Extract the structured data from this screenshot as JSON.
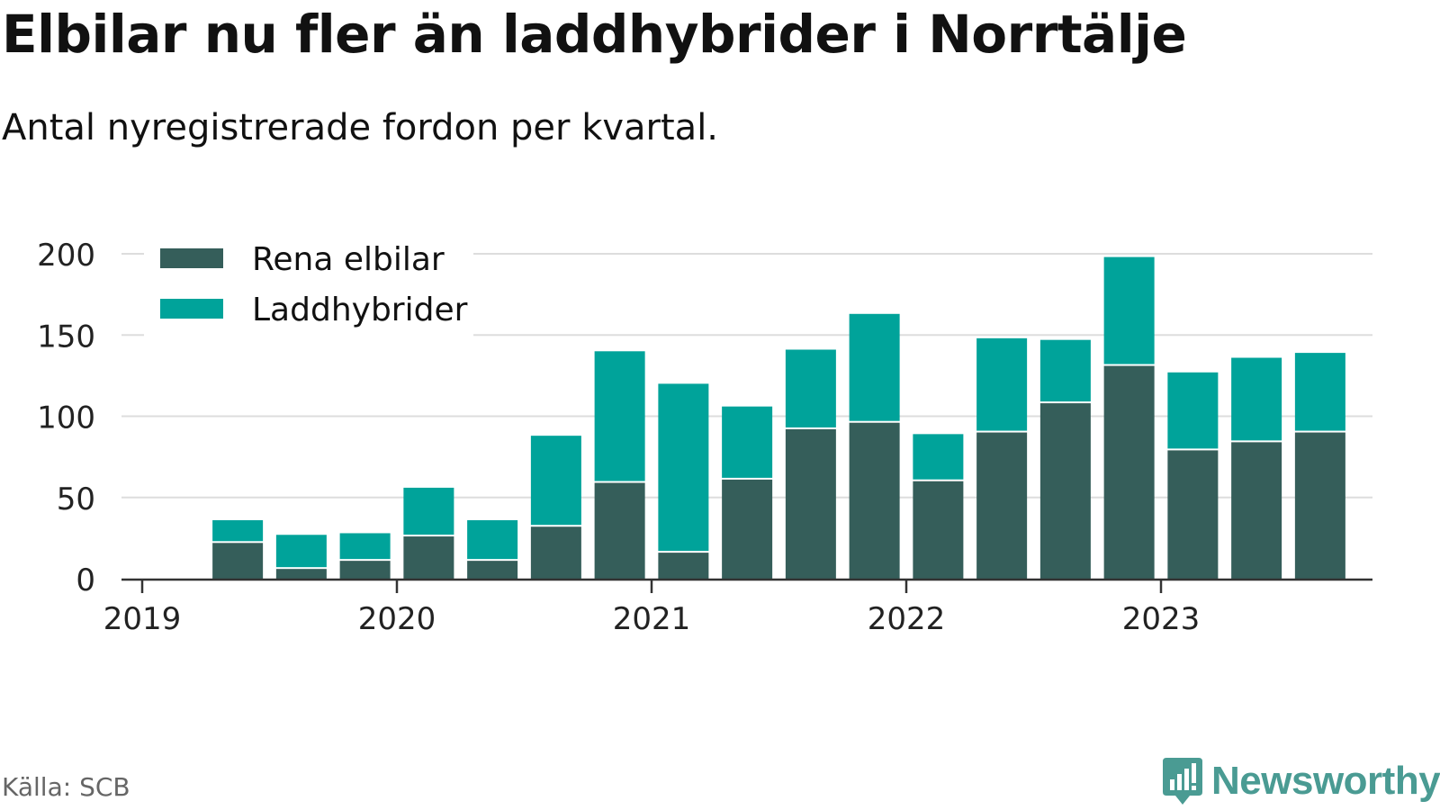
{
  "title": "Elbilar nu fler än laddhybrider i Norrtälje",
  "subtitle": "Antal nyregistrerade fordon per kvartal.",
  "source": "Källa: SCB",
  "brand": "Newsworthy",
  "colors": {
    "elbilar": "#355e5a",
    "laddhybrider": "#00a39a",
    "grid": "#dddddd",
    "axis": "#333333",
    "brand": "#4a9b93"
  },
  "chart_data": {
    "type": "bar",
    "stacked": true,
    "title": "Elbilar nu fler än laddhybrider i Norrtälje",
    "subtitle": "Antal nyregistrerade fordon per kvartal.",
    "xlabel": "",
    "ylabel": "",
    "ylim": [
      0,
      200
    ],
    "yticks": [
      0,
      50,
      100,
      150,
      200
    ],
    "xticks": [
      "2019",
      "2020",
      "2021",
      "2022",
      "2023"
    ],
    "legend_position": "top-left",
    "categories": [
      "2019 Q2",
      "2019 Q3",
      "2019 Q4",
      "2020 Q1",
      "2020 Q2",
      "2020 Q3",
      "2020 Q4",
      "2021 Q1",
      "2021 Q2",
      "2021 Q3",
      "2021 Q4",
      "2022 Q1",
      "2022 Q2",
      "2022 Q3",
      "2022 Q4",
      "2023 Q1",
      "2023 Q2",
      "2023 Q3"
    ],
    "series": [
      {
        "name": "Rena elbilar",
        "values": [
          22,
          6,
          11,
          26,
          11,
          32,
          59,
          16,
          61,
          92,
          96,
          60,
          90,
          108,
          131,
          79,
          84,
          90
        ]
      },
      {
        "name": "Laddhybrider",
        "values": [
          14,
          21,
          17,
          30,
          25,
          56,
          81,
          104,
          45,
          49,
          67,
          29,
          58,
          39,
          67,
          48,
          52,
          49
        ]
      }
    ]
  }
}
